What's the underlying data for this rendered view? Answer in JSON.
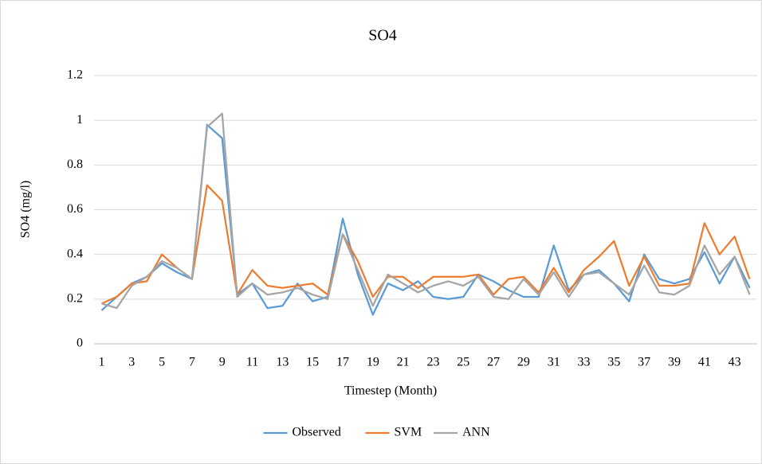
{
  "chart_data": {
    "type": "line",
    "title": "SO4",
    "x_label": "Timestep (Month)",
    "y_label": "SO4 (mg/l)",
    "categories": [
      "1",
      null,
      "3",
      null,
      "5",
      null,
      "7",
      null,
      "9",
      null,
      "11",
      null,
      "13",
      null,
      "15",
      null,
      "17",
      null,
      "19",
      null,
      "21",
      null,
      "23",
      null,
      "25",
      null,
      "27",
      null,
      "29",
      null,
      "31",
      null,
      "33",
      null,
      "35",
      null,
      "37",
      null,
      "39",
      null,
      "41",
      null,
      "43",
      null
    ],
    "series": [
      {
        "name": "Observed",
        "color": "#5b9bd5",
        "values": [
          0.15,
          0.21,
          0.27,
          0.3,
          0.36,
          0.32,
          0.29,
          0.98,
          0.92,
          0.22,
          0.27,
          0.16,
          0.17,
          0.27,
          0.19,
          0.21,
          0.56,
          0.31,
          0.13,
          0.27,
          0.24,
          0.28,
          0.21,
          0.2,
          0.21,
          0.31,
          0.28,
          0.24,
          0.21,
          0.21,
          0.44,
          0.24,
          0.31,
          0.33,
          0.27,
          0.19,
          0.4,
          0.29,
          0.27,
          0.29,
          0.41,
          0.27,
          0.39,
          0.25
        ]
      },
      {
        "name": "SVM",
        "color": "#ed7d31",
        "values": [
          0.18,
          0.21,
          0.27,
          0.28,
          0.4,
          0.34,
          0.29,
          0.71,
          0.64,
          0.22,
          0.33,
          0.26,
          0.25,
          0.26,
          0.27,
          0.22,
          0.49,
          0.37,
          0.21,
          0.3,
          0.3,
          0.25,
          0.3,
          0.3,
          0.3,
          0.31,
          0.22,
          0.29,
          0.3,
          0.23,
          0.34,
          0.23,
          0.33,
          0.39,
          0.46,
          0.26,
          0.39,
          0.26,
          0.26,
          0.27,
          0.54,
          0.4,
          0.48,
          0.29
        ]
      },
      {
        "name": "ANN",
        "color": "#a5a5a5",
        "values": [
          0.18,
          0.16,
          0.26,
          0.3,
          0.37,
          0.34,
          0.29,
          0.97,
          1.03,
          0.21,
          0.27,
          0.22,
          0.23,
          0.25,
          0.22,
          0.2,
          0.49,
          0.33,
          0.17,
          0.31,
          0.27,
          0.23,
          0.26,
          0.28,
          0.26,
          0.3,
          0.21,
          0.2,
          0.29,
          0.22,
          0.32,
          0.21,
          0.31,
          0.32,
          0.27,
          0.22,
          0.35,
          0.23,
          0.22,
          0.26,
          0.44,
          0.31,
          0.39,
          0.22
        ]
      }
    ],
    "ylim": [
      0,
      1.2
    ],
    "yticks": [
      0,
      0.2,
      0.4,
      0.6,
      0.8,
      1,
      1.2
    ],
    "grid": true,
    "legend": "bottom"
  }
}
